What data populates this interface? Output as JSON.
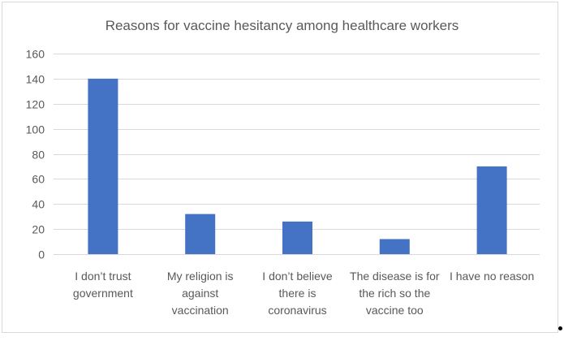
{
  "chart_data": {
    "type": "bar",
    "title": "Reasons for vaccine hesitancy among healthcare workers",
    "categories": [
      [
        "I don’t trust",
        "government"
      ],
      [
        "My religion is",
        "against",
        "vaccination"
      ],
      [
        "I don’t believe",
        "there is",
        "coronavirus"
      ],
      [
        "The disease is for",
        "the rich so the",
        "vaccine too"
      ],
      [
        "I have no reason"
      ]
    ],
    "values": [
      140,
      32,
      26,
      12,
      70
    ],
    "ylim": [
      0,
      160
    ],
    "yticks": [
      0,
      20,
      40,
      60,
      80,
      100,
      120,
      140,
      160
    ],
    "grid": true,
    "legend": "none",
    "bar_color": "#4472c4",
    "grid_color": "#d9d9d9",
    "text_color": "#595959"
  }
}
